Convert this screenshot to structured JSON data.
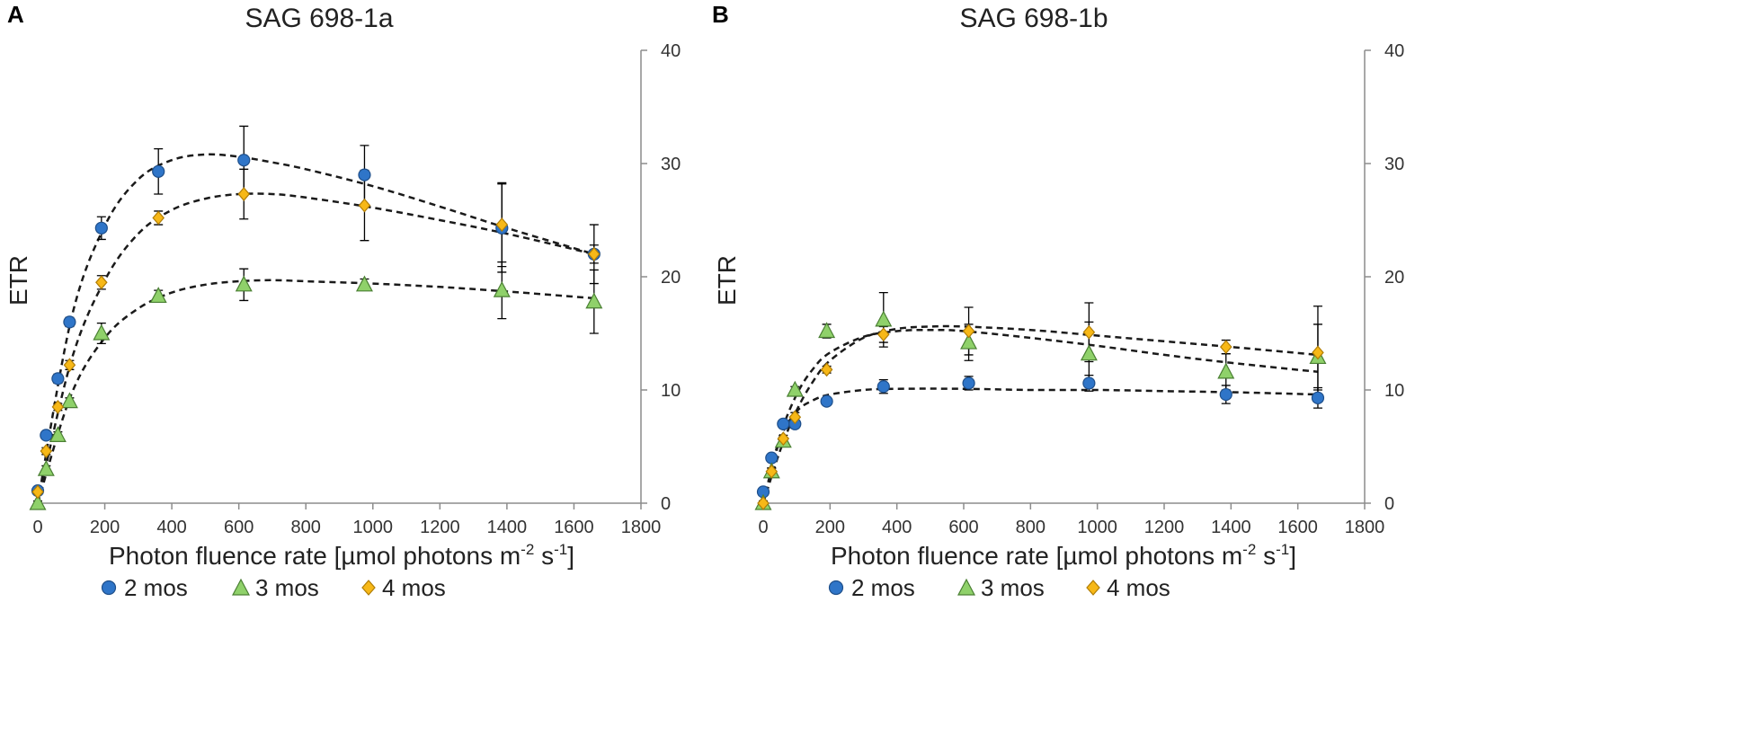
{
  "legend": {
    "items": [
      {
        "label": "2 mos",
        "marker": "circle",
        "color": "#2f75c8"
      },
      {
        "label": "3 mos",
        "marker": "triangle",
        "color": "#8fd16a"
      },
      {
        "label": "4 mos",
        "marker": "diamond",
        "color": "#f7b817"
      }
    ]
  },
  "chart_data": [
    {
      "panel": "A",
      "type": "scatter",
      "title": "SAG 698-1a",
      "xlabel": "Photon fluence rate [µmol photons m-2 s-1]",
      "ylabel": "ETR",
      "xlim": [
        0,
        1800
      ],
      "ylim": [
        0,
        40
      ],
      "xticks": [
        0,
        200,
        400,
        600,
        800,
        1000,
        1200,
        1400,
        1600,
        1800
      ],
      "yticks": [
        0,
        10,
        20,
        30,
        40
      ],
      "series": [
        {
          "name": "2 mos",
          "x": [
            0,
            25,
            60,
            95,
            190,
            360,
            615,
            975,
            1385,
            1660
          ],
          "y": [
            1.1,
            6.0,
            11.0,
            16.0,
            24.3,
            29.3,
            30.3,
            29.0,
            24.3,
            22.0
          ],
          "err": [
            0.2,
            0.3,
            0.4,
            0.4,
            1.0,
            2.0,
            3.0,
            2.6,
            3.9,
            0.8
          ]
        },
        {
          "name": "3 mos",
          "x": [
            0,
            25,
            60,
            95,
            190,
            360,
            615,
            975,
            1385,
            1660
          ],
          "y": [
            0,
            3.0,
            6.0,
            9.0,
            15.0,
            18.3,
            19.3,
            19.3,
            18.8,
            17.8
          ],
          "err": [
            0.2,
            0.3,
            0.3,
            0.3,
            0.9,
            0.5,
            1.4,
            0.5,
            2.5,
            2.8
          ]
        },
        {
          "name": "4 mos",
          "x": [
            0,
            25,
            60,
            95,
            190,
            360,
            615,
            975,
            1385,
            1660
          ],
          "y": [
            1.0,
            4.6,
            8.5,
            12.2,
            19.5,
            25.2,
            27.3,
            26.3,
            24.6,
            22.0
          ],
          "err": [
            0.2,
            0.3,
            0.3,
            0.4,
            0.6,
            0.6,
            2.2,
            3.1,
            3.7,
            2.6
          ]
        }
      ],
      "fits": [
        {
          "name": "2 mos",
          "x": [
            0,
            100,
            200,
            300,
            400,
            500,
            600,
            700,
            800,
            1000,
            1200,
            1400,
            1660
          ],
          "y": [
            0,
            16.3,
            24.5,
            28.6,
            30.3,
            30.8,
            30.6,
            30.1,
            29.5,
            28.0,
            26.2,
            24.3,
            22.0
          ]
        },
        {
          "name": "3 mos",
          "x": [
            0,
            100,
            200,
            300,
            400,
            500,
            600,
            700,
            800,
            1000,
            1200,
            1400,
            1660
          ],
          "y": [
            0,
            9.6,
            14.6,
            17.2,
            18.6,
            19.3,
            19.6,
            19.7,
            19.6,
            19.4,
            19.1,
            18.7,
            18.1
          ]
        },
        {
          "name": "4 mos",
          "x": [
            0,
            100,
            200,
            300,
            400,
            500,
            600,
            700,
            800,
            1000,
            1200,
            1400,
            1660
          ],
          "y": [
            0,
            12.6,
            19.7,
            23.8,
            25.9,
            26.9,
            27.3,
            27.3,
            27.0,
            26.1,
            25.0,
            23.8,
            22.0
          ]
        }
      ]
    },
    {
      "panel": "B",
      "type": "scatter",
      "title": "SAG 698-1b",
      "xlabel": "Photon fluence rate [µmol photons m-2 s-1]",
      "ylabel": "ETR",
      "xlim": [
        0,
        1800
      ],
      "ylim": [
        0,
        40
      ],
      "xticks": [
        0,
        200,
        400,
        600,
        800,
        1000,
        1200,
        1400,
        1600,
        1800
      ],
      "yticks": [
        0,
        10,
        20,
        30,
        40
      ],
      "series": [
        {
          "name": "2 mos",
          "x": [
            0,
            25,
            60,
            95,
            190,
            360,
            615,
            975,
            1385,
            1660
          ],
          "y": [
            1.0,
            4.0,
            7.0,
            7.0,
            9.0,
            10.3,
            10.6,
            10.6,
            9.6,
            9.3
          ],
          "err": [
            0.2,
            0.3,
            0.3,
            0.3,
            0.3,
            0.6,
            0.6,
            0.7,
            0.8,
            0.9
          ]
        },
        {
          "name": "3 mos",
          "x": [
            0,
            25,
            60,
            95,
            190,
            360,
            615,
            975,
            1385,
            1660
          ],
          "y": [
            0,
            2.8,
            5.5,
            10.0,
            15.2,
            16.2,
            14.2,
            13.2,
            11.6,
            12.9
          ],
          "err": [
            0.2,
            0.3,
            0.3,
            0.3,
            0.6,
            2.4,
            1.6,
            2.8,
            1.6,
            2.9
          ]
        },
        {
          "name": "4 mos",
          "x": [
            0,
            25,
            60,
            95,
            190,
            360,
            615,
            975,
            1385,
            1660
          ],
          "y": [
            0,
            2.8,
            5.7,
            7.6,
            11.8,
            14.9,
            15.2,
            15.1,
            13.8,
            13.3
          ],
          "err": [
            0.2,
            0.3,
            0.3,
            0.4,
            0.3,
            0.7,
            2.1,
            2.6,
            0.6,
            4.1
          ]
        }
      ],
      "fits": [
        {
          "name": "2 mos",
          "x": [
            0,
            50,
            100,
            150,
            200,
            300,
            400,
            600,
            800,
            1000,
            1200,
            1400,
            1660
          ],
          "y": [
            0,
            5.6,
            8.1,
            9.1,
            9.6,
            10.0,
            10.1,
            10.1,
            10.0,
            10.0,
            9.9,
            9.8,
            9.6
          ]
        },
        {
          "name": "3 mos",
          "x": [
            0,
            50,
            100,
            150,
            200,
            300,
            400,
            500,
            600,
            800,
            1000,
            1200,
            1400,
            1660
          ],
          "y": [
            0,
            5.9,
            9.6,
            11.9,
            13.3,
            14.7,
            15.2,
            15.3,
            15.2,
            14.6,
            13.9,
            13.1,
            12.4,
            11.6
          ]
        },
        {
          "name": "4 mos",
          "x": [
            0,
            50,
            100,
            150,
            200,
            300,
            400,
            500,
            600,
            800,
            1000,
            1200,
            1400,
            1660
          ],
          "y": [
            0,
            4.6,
            8.2,
            10.8,
            12.6,
            14.6,
            15.4,
            15.6,
            15.6,
            15.3,
            14.8,
            14.3,
            13.8,
            13.1
          ]
        }
      ]
    }
  ]
}
